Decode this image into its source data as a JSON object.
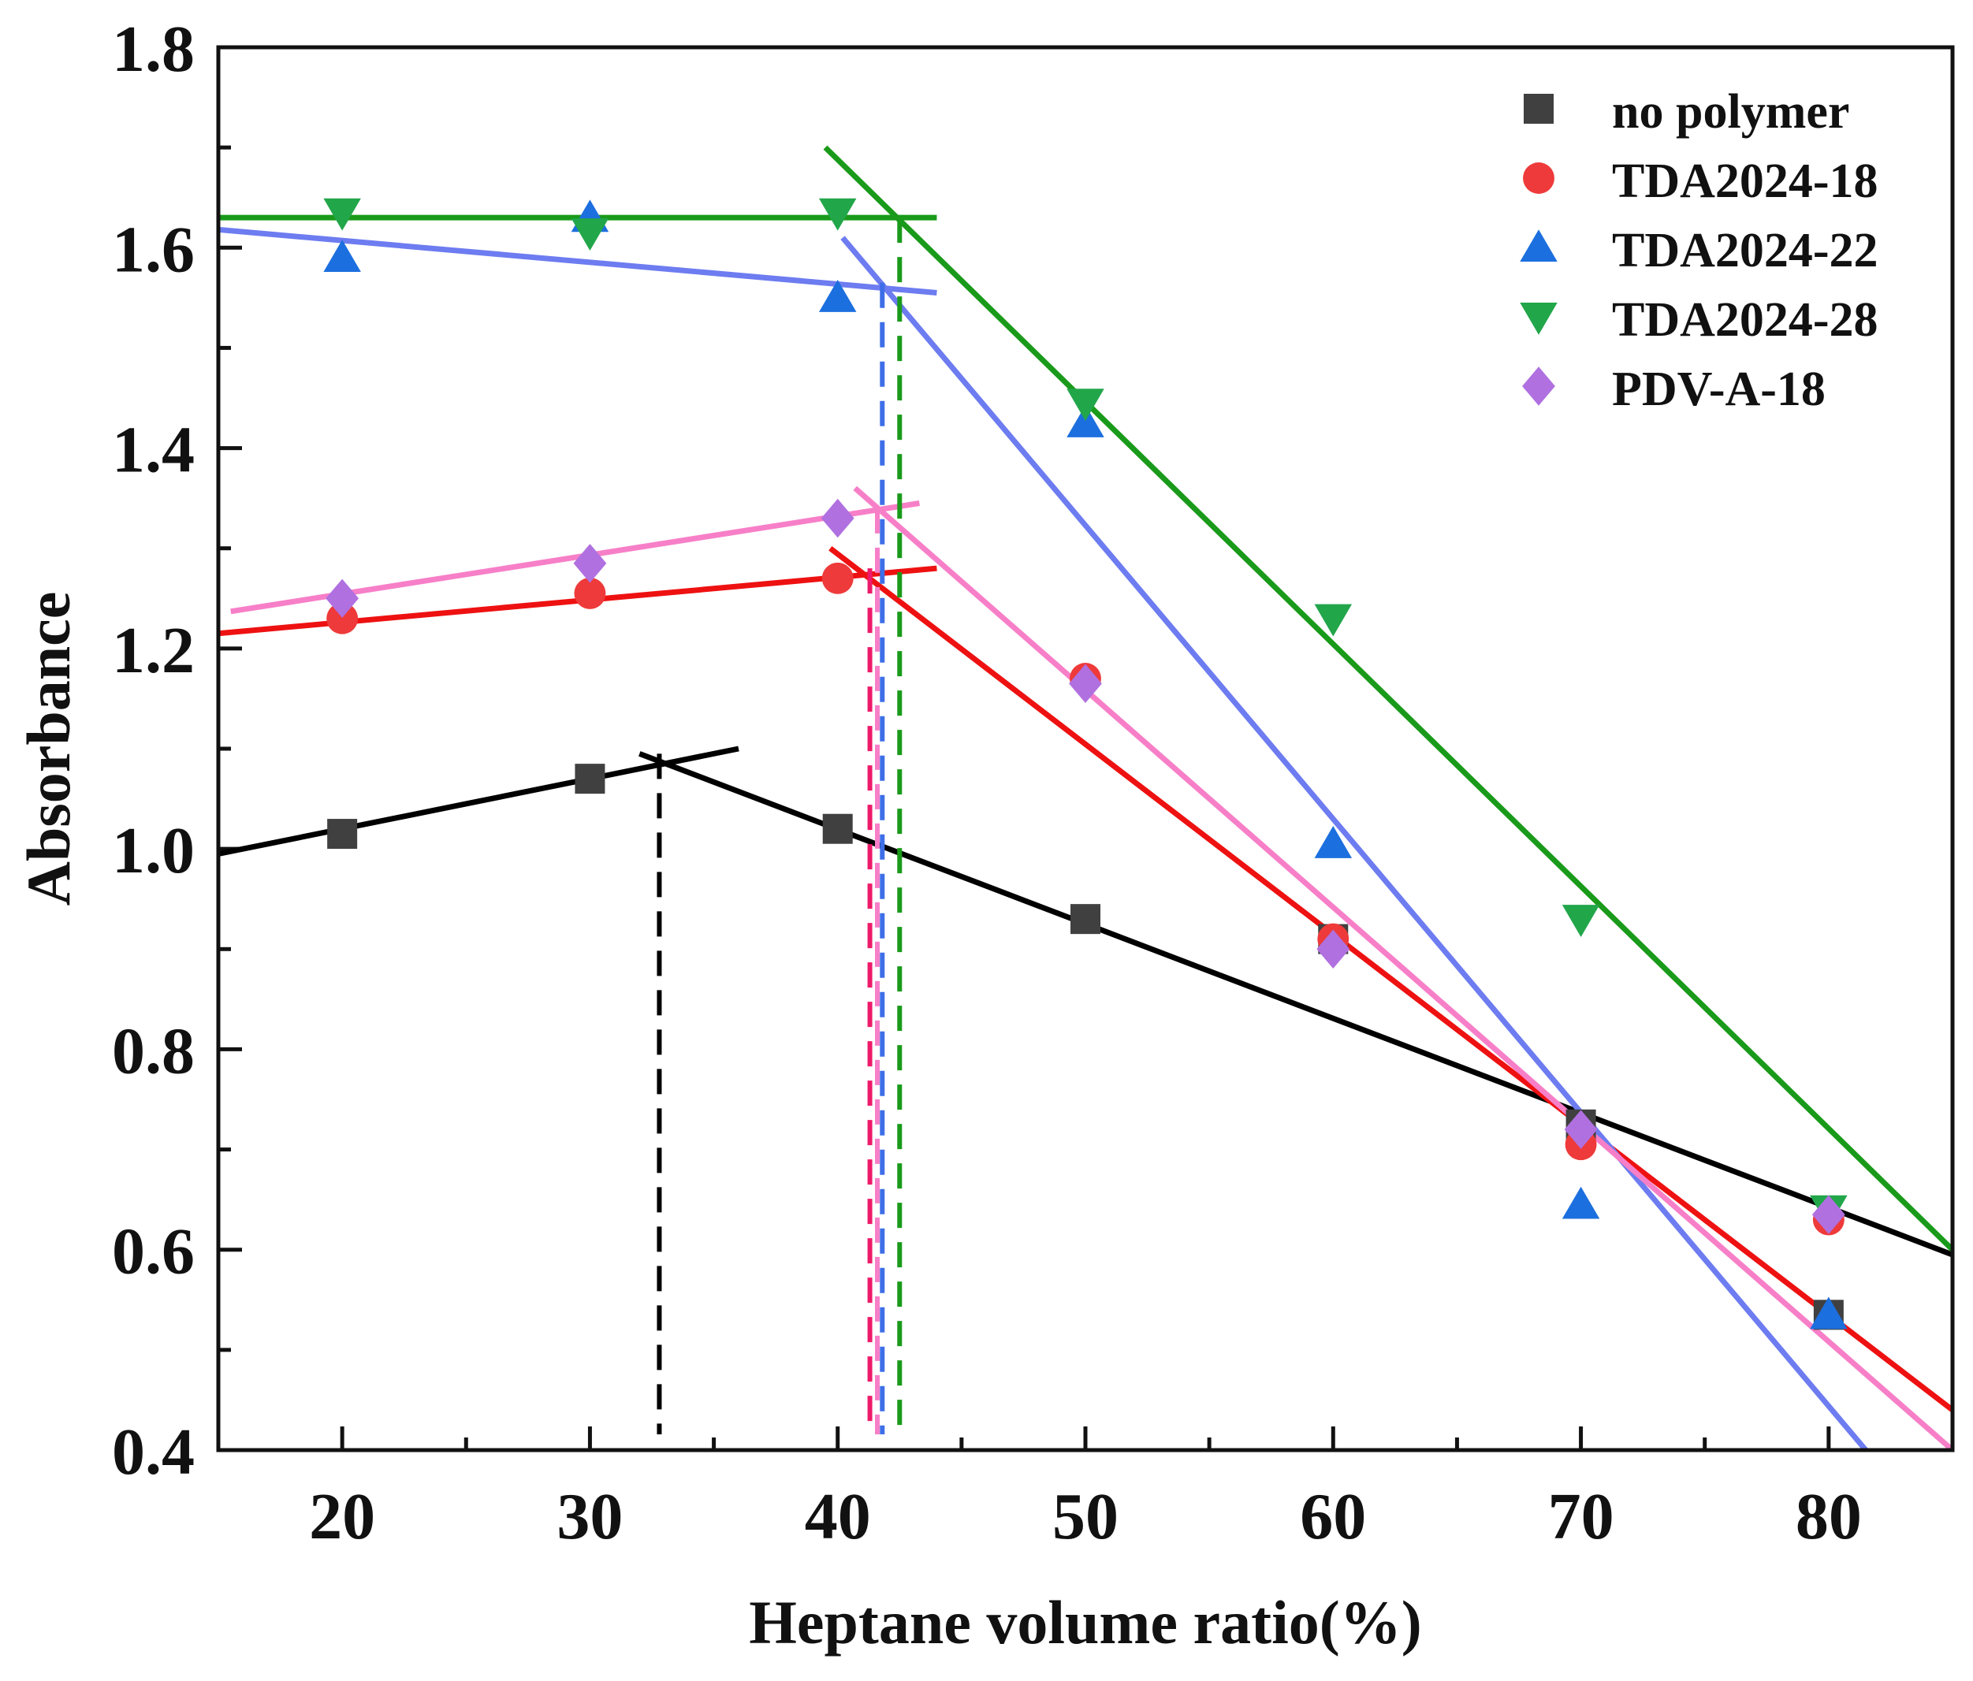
{
  "chart_data": {
    "type": "scatter",
    "title": "",
    "xlabel": "Heptane volume ratio(%)",
    "ylabel": "Absorbance",
    "xlim": [
      15,
      85
    ],
    "ylim": [
      0.4,
      1.8
    ],
    "xticks": [
      "20",
      "30",
      "40",
      "50",
      "60",
      "70",
      "80"
    ],
    "yticks": [
      "0.4",
      "0.6",
      "0.8",
      "1.0",
      "1.2",
      "1.4",
      "1.6",
      "1.8"
    ],
    "legend_position": "top-right",
    "series": [
      {
        "name": "no polymer",
        "marker": "square",
        "color": "#404040",
        "x": [
          20,
          30,
          40,
          50,
          60,
          70,
          80
        ],
        "y": [
          1.015,
          1.07,
          1.02,
          0.93,
          0.91,
          0.725,
          0.535
        ]
      },
      {
        "name": "TDA2024-18",
        "marker": "circle",
        "color": "#ee3a3a",
        "x": [
          20,
          30,
          40,
          50,
          60,
          70,
          80
        ],
        "y": [
          1.23,
          1.255,
          1.27,
          1.17,
          0.91,
          0.705,
          0.63
        ]
      },
      {
        "name": "TDA2024-22",
        "marker": "triangle-up",
        "color": "#1c6fde",
        "x": [
          20,
          30,
          40,
          50,
          60,
          70,
          80
        ],
        "y": [
          1.59,
          1.63,
          1.55,
          1.425,
          1.005,
          0.645,
          0.535
        ]
      },
      {
        "name": "TDA2024-28",
        "marker": "triangle-down",
        "color": "#22a64a",
        "x": [
          20,
          30,
          40,
          50,
          60,
          70,
          80
        ],
        "y": [
          1.635,
          1.615,
          1.635,
          1.445,
          1.23,
          0.93,
          0.64
        ]
      },
      {
        "name": "PDV-A-18",
        "marker": "diamond",
        "color": "#b070e0",
        "x": [
          20,
          30,
          40,
          50,
          60,
          70,
          80
        ],
        "y": [
          1.25,
          1.285,
          1.33,
          1.165,
          0.9,
          0.72,
          0.635
        ]
      }
    ],
    "fit_lines": [
      {
        "series": "no polymer",
        "color": "#000000",
        "x": [
          15,
          36
        ],
        "y": [
          0.995,
          1.1
        ]
      },
      {
        "series": "no polymer",
        "color": "#000000",
        "x": [
          32,
          85
        ],
        "y": [
          1.095,
          0.595
        ]
      },
      {
        "series": "TDA2024-18",
        "color": "#ee1111",
        "x": [
          15,
          44
        ],
        "y": [
          1.215,
          1.28
        ]
      },
      {
        "series": "TDA2024-18",
        "color": "#ee1111",
        "x": [
          39.7,
          85
        ],
        "y": [
          1.3,
          0.44
        ]
      },
      {
        "series": "TDA2024-22",
        "color": "#6d7cf0",
        "x": [
          15,
          44
        ],
        "y": [
          1.618,
          1.555
        ]
      },
      {
        "series": "TDA2024-22",
        "color": "#6d7cf0",
        "x": [
          40.2,
          81.5
        ],
        "y": [
          1.61,
          0.4
        ]
      },
      {
        "series": "TDA2024-28",
        "color": "#1a9a1a",
        "x": [
          15,
          44
        ],
        "y": [
          1.63,
          1.63
        ]
      },
      {
        "series": "TDA2024-28",
        "color": "#1a9a1a",
        "x": [
          39.5,
          85
        ],
        "y": [
          1.7,
          0.6
        ]
      },
      {
        "series": "PDV-A-18",
        "color": "#f77fc8",
        "x": [
          15.5,
          43.3
        ],
        "y": [
          1.237,
          1.345
        ]
      },
      {
        "series": "PDV-A-18",
        "color": "#f77fc8",
        "x": [
          40.7,
          85
        ],
        "y": [
          1.36,
          0.4
        ]
      }
    ],
    "breakpoints": [
      {
        "series": "no polymer",
        "color": "#000000",
        "x": 32.8,
        "y_top": 1.095
      },
      {
        "series": "TDA2024-18",
        "color": "#ee1a6a",
        "x": 41.3,
        "y_top": 1.28
      },
      {
        "series": "PDV-A-18",
        "color": "#f77fc8",
        "x": 41.6,
        "y_top": 1.34
      },
      {
        "series": "TDA2024-22",
        "color": "#3e6ee8",
        "x": 41.8,
        "y_top": 1.565
      },
      {
        "series": "TDA2024-28",
        "color": "#1a9a1a",
        "x": 42.5,
        "y_top": 1.63
      }
    ]
  }
}
